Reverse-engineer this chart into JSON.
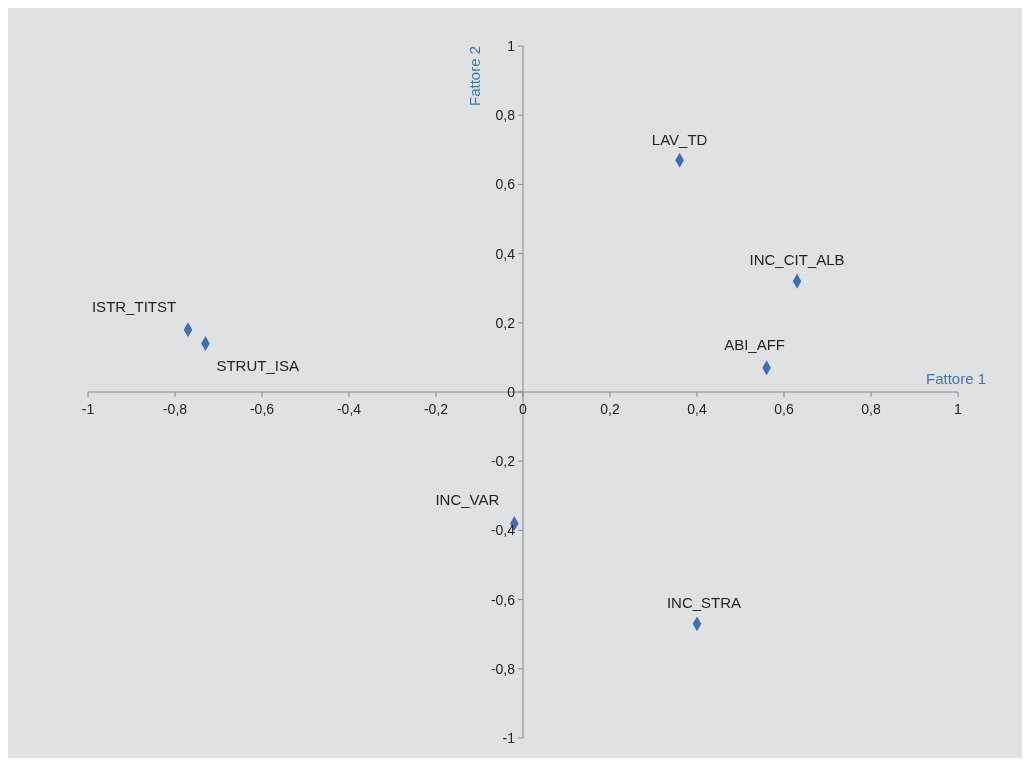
{
  "chart_data": {
    "type": "scatter",
    "xlabel": "Fattore 1",
    "ylabel": "Fattore 2",
    "x": [
      0.36,
      0.63,
      0.56,
      -0.77,
      -0.73,
      -0.02,
      0.4
    ],
    "series": [
      {
        "color": "#3f6eb3",
        "values": [
          0.67,
          0.32,
          0.07,
          0.18,
          0.14,
          -0.38,
          -0.67
        ]
      }
    ],
    "annotations": [
      {
        "text": "LAV_TD",
        "x": 0.36,
        "y": 0.67
      },
      {
        "text": "INC_CIT_ALB",
        "x": 0.63,
        "y": 0.32
      },
      {
        "text": "ABI_AFF",
        "x": 0.56,
        "y": 0.07
      },
      {
        "text": "ISTR_TITST",
        "x": -0.77,
        "y": 0.18
      },
      {
        "text": "STRUT_ISA",
        "x": -0.73,
        "y": 0.14
      },
      {
        "text": "INC_VAR",
        "x": -0.02,
        "y": -0.38
      },
      {
        "text": "INC_STRA",
        "x": 0.4,
        "y": -0.67
      }
    ],
    "xlim": [
      -1,
      1
    ],
    "ylim": [
      -1,
      1
    ],
    "xticks": [
      -1,
      {
        "value": -0.8,
        "label": "-0,8"
      },
      {
        "value": -0.6,
        "label": "-0,6"
      },
      {
        "value": -0.4,
        "label": "-0,4"
      },
      {
        "value": -0.2,
        "label": "-0,2"
      },
      0,
      {
        "value": 0.2,
        "label": "0,2"
      },
      {
        "value": 0.4,
        "label": "0,4"
      },
      {
        "value": 0.6,
        "label": "0,6"
      },
      {
        "value": 0.8,
        "label": "0,8"
      },
      1
    ],
    "yticks": [
      -1,
      {
        "value": -0.8,
        "label": "-0,8"
      },
      {
        "value": -0.6,
        "label": "-0,6"
      },
      {
        "value": -0.4,
        "label": "-0,4"
      },
      {
        "value": -0.2,
        "label": "-0,2"
      },
      0,
      {
        "value": 0.2,
        "label": "0,2"
      },
      {
        "value": 0.4,
        "label": "0,4"
      },
      {
        "value": 0.6,
        "label": "0,6"
      },
      {
        "value": 0.8,
        "label": "0,8"
      },
      1
    ],
    "marker": "diamond",
    "grid": false,
    "legend": false
  }
}
